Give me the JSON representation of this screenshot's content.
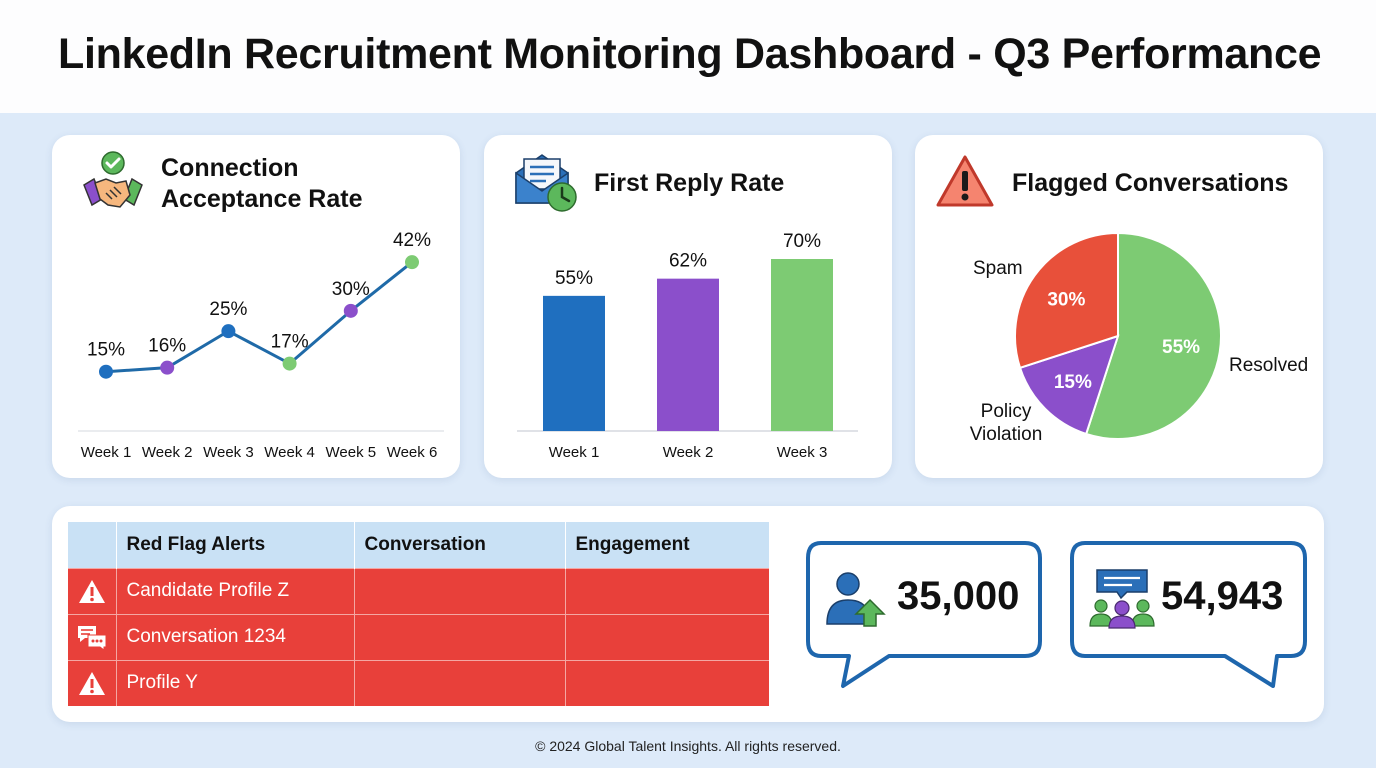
{
  "page_title": "LinkedIn Recruitment Monitoring Dashboard - Q3 Performance",
  "footer": "© 2024 Global Talent Insights. All rights reserved.",
  "colors": {
    "blue": "#1f6fbf",
    "purple": "#8b4fcb",
    "green": "#7dcb73",
    "red": "#e8503a"
  },
  "cards": {
    "acceptance": {
      "title_line1": "Connection",
      "title_line2": "Acceptance Rate",
      "icon": "handshake-check-icon"
    },
    "reply": {
      "title": "First Reply Rate",
      "icon": "mail-clock-icon"
    },
    "flagged": {
      "title": "Flagged Conversations",
      "icon": "warning-triangle-icon"
    }
  },
  "chart_data": [
    {
      "type": "line",
      "title": "Connection Acceptance Rate",
      "categories": [
        "Week 1",
        "Week 2",
        "Week 3",
        "Week 4",
        "Week 5",
        "Week 6"
      ],
      "values": [
        15,
        16,
        25,
        17,
        30,
        42
      ],
      "labels": [
        "15%",
        "16%",
        "25%",
        "17%",
        "30%",
        "42%"
      ],
      "point_colors": [
        "#1f6fbf",
        "#8b4fcb",
        "#1f6fbf",
        "#7dcb73",
        "#8b4fcb",
        "#7dcb73"
      ],
      "line_color": "#1f6aa8",
      "ylim": [
        10,
        45
      ]
    },
    {
      "type": "bar",
      "title": "First Reply Rate",
      "categories": [
        "Week 1",
        "Week 2",
        "Week 3"
      ],
      "values": [
        55,
        62,
        70
      ],
      "labels": [
        "55%",
        "62%",
        "70%"
      ],
      "bar_colors": [
        "#1f6fbf",
        "#8b4fcb",
        "#7dcb73"
      ],
      "ylim": [
        0,
        80
      ]
    },
    {
      "type": "pie",
      "title": "Flagged Conversations",
      "slices": [
        {
          "name": "Resolved",
          "value": 55,
          "label": "55%",
          "color": "#7dcb73"
        },
        {
          "name": "Policy Violation",
          "value": 15,
          "label": "15%",
          "color": "#8b4fcb"
        },
        {
          "name": "Spam",
          "value": 30,
          "label": "30%",
          "color": "#e8503a"
        }
      ],
      "outer_labels": {
        "spam": "Spam",
        "resolved": "Resolved",
        "policy_line1": "Policy",
        "policy_line2": "Violation"
      }
    }
  ],
  "table": {
    "headers": [
      "",
      "Red Flag Alerts",
      "Conversation",
      "Engagement"
    ],
    "rows": [
      {
        "icon": "warning-icon",
        "alert": "Candidate Profile Z",
        "conversation": "",
        "engagement": ""
      },
      {
        "icon": "chat-bubbles-icon",
        "alert": "Conversation 1234",
        "conversation": "",
        "engagement": ""
      },
      {
        "icon": "warning-icon",
        "alert": "Profile Y",
        "conversation": "",
        "engagement": ""
      }
    ]
  },
  "stats": [
    {
      "icon": "user-growth-icon",
      "value": "35,000"
    },
    {
      "icon": "group-chat-icon",
      "value": "54,943"
    }
  ]
}
